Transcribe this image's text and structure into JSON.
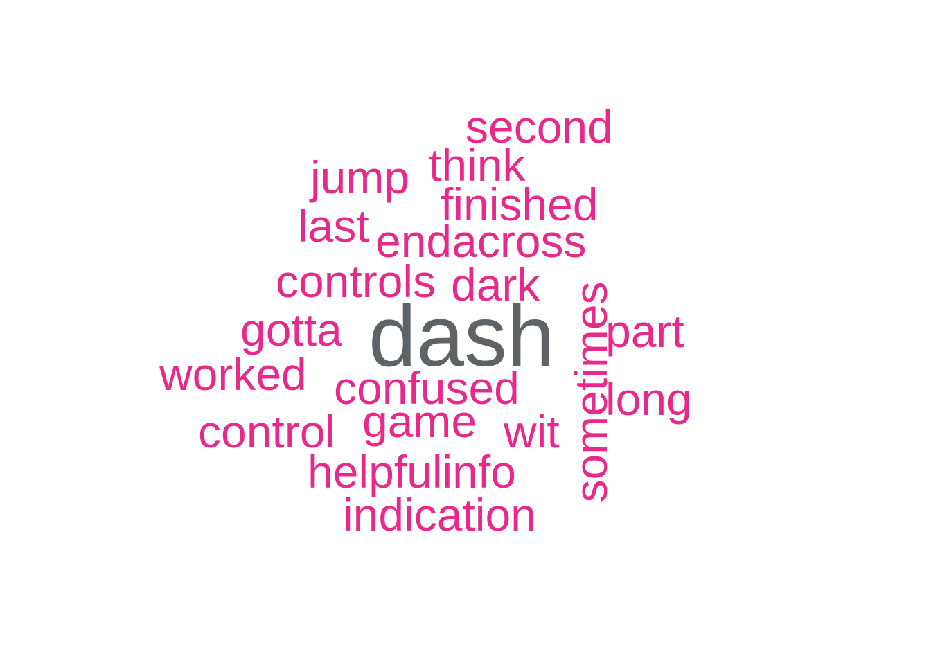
{
  "wordcloud": {
    "words": {
      "dash": "dash",
      "second": "second",
      "think": "think",
      "jump": "jump",
      "finished": "finished",
      "last": "last",
      "endacross": "endacross",
      "controls": "controls",
      "dark": "dark",
      "gotta": "gotta",
      "part": "part",
      "worked": "worked",
      "confused": "confused",
      "long": "long",
      "game": "game",
      "control": "control",
      "wit": "wit",
      "helpfulinfo": "helpfulinfo",
      "indication": "indication",
      "sometimes": "sometimes"
    },
    "colors": {
      "primary_word": "#5f6366",
      "other_words": "#e7298a",
      "background": "#ffffff"
    }
  }
}
